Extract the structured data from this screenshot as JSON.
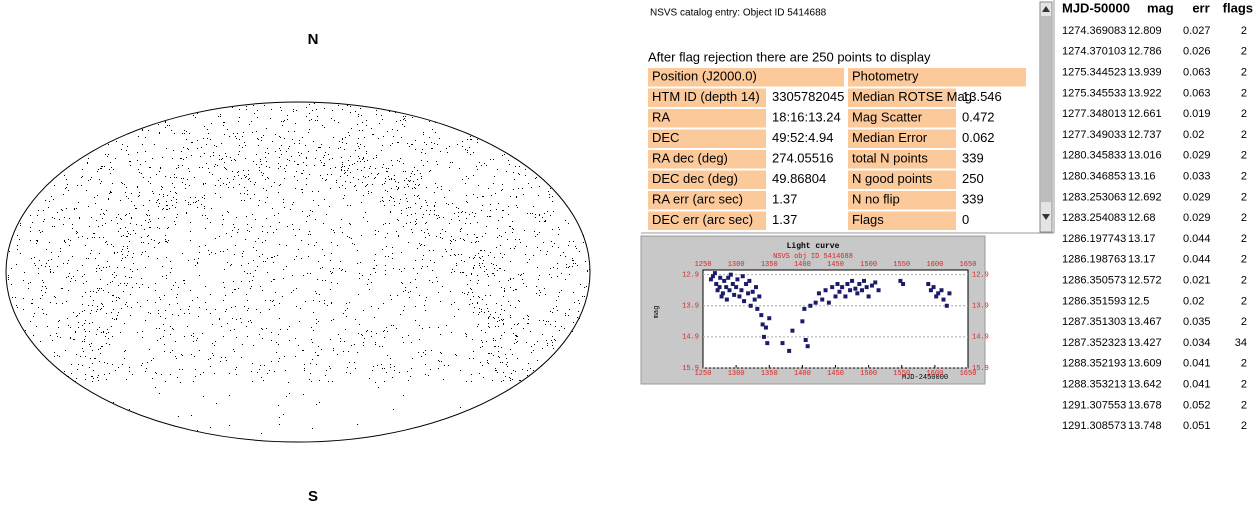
{
  "sky_map": {
    "north": "N",
    "south": "S"
  },
  "catalog": {
    "title": "NSVS catalog entry: Object ID 5414688",
    "note": "After flag rejection there are 250 points to display",
    "headers": [
      "Position (J2000.0)",
      "Photometry"
    ],
    "rows": [
      [
        "HTM ID (depth 14)",
        "3305782045",
        "Median ROTSE Mag",
        "13.546"
      ],
      [
        "RA",
        "18:16:13.24",
        "Mag Scatter",
        "0.472"
      ],
      [
        "DEC",
        "49:52:4.94",
        "Median Error",
        "0.062"
      ],
      [
        "RA dec (deg)",
        "274.05516",
        "total N points",
        "339"
      ],
      [
        "DEC dec (deg)",
        "49.86804",
        "N good points",
        "250"
      ],
      [
        "RA err (arc sec)",
        "1.37",
        "N no flip",
        "339"
      ],
      [
        "DEC err (arc sec)",
        "1.37",
        "Flags",
        "0"
      ]
    ]
  },
  "light_curve": {
    "type": "scatter",
    "title": "Light curve",
    "subtitle": "NSVS obj ID 5414688",
    "xlabel": "MJD-2450000",
    "ylabel": "mag",
    "color": "#1b1b6b",
    "xlim": [
      1250,
      1650
    ],
    "ylim": [
      12.75,
      15.9
    ],
    "xticks": [
      1250,
      1300,
      1350,
      1400,
      1450,
      1500,
      1550,
      1600,
      1650
    ],
    "yticks": [
      12.9,
      13.9,
      14.9,
      15.9
    ],
    "x": [
      1262,
      1265,
      1268,
      1270,
      1272,
      1275,
      1276,
      1278,
      1280,
      1282,
      1285,
      1286,
      1288,
      1290,
      1292,
      1295,
      1297,
      1300,
      1302,
      1305,
      1308,
      1310,
      1312,
      1315,
      1318,
      1320,
      1322,
      1325,
      1328,
      1330,
      1332,
      1335,
      1338,
      1340,
      1342,
      1345,
      1347,
      1350,
      1370,
      1380,
      1385,
      1400,
      1403,
      1405,
      1408,
      1412,
      1420,
      1425,
      1430,
      1435,
      1440,
      1445,
      1450,
      1453,
      1456,
      1460,
      1465,
      1468,
      1472,
      1475,
      1480,
      1483,
      1486,
      1490,
      1493,
      1497,
      1500,
      1505,
      1510,
      1515,
      1548,
      1552,
      1590,
      1594,
      1598,
      1602,
      1605,
      1610,
      1613,
      1618,
      1622
    ],
    "y": [
      13.05,
      12.95,
      12.85,
      13.2,
      13.4,
      13.3,
      13.0,
      13.6,
      13.5,
      13.1,
      13.3,
      13.7,
      13.0,
      13.4,
      12.9,
      13.2,
      13.55,
      13.3,
      13.05,
      13.6,
      13.4,
      12.95,
      13.75,
      13.2,
      13.5,
      13.1,
      13.9,
      13.45,
      13.7,
      13.3,
      14.0,
      13.6,
      14.2,
      14.5,
      14.9,
      14.6,
      15.1,
      14.3,
      15.1,
      15.35,
      14.7,
      14.4,
      14.0,
      15.0,
      15.2,
      13.9,
      13.8,
      13.5,
      13.7,
      13.4,
      13.8,
      13.3,
      13.6,
      13.2,
      13.45,
      13.3,
      13.6,
      13.2,
      13.4,
      13.1,
      13.35,
      13.5,
      13.2,
      13.4,
      13.1,
      13.3,
      13.6,
      13.25,
      13.15,
      13.4,
      13.1,
      13.2,
      13.2,
      13.4,
      13.3,
      13.6,
      13.5,
      13.4,
      13.7,
      13.9,
      13.5
    ]
  },
  "measurements": {
    "columns": [
      "MJD-50000",
      "mag",
      "err",
      "flags"
    ],
    "rows": [
      [
        "1274.369083",
        "12.809",
        "0.027",
        "2"
      ],
      [
        "1274.370103",
        "12.786",
        "0.026",
        "2"
      ],
      [
        "1275.344523",
        "13.939",
        "0.063",
        "2"
      ],
      [
        "1275.345533",
        "13.922",
        "0.063",
        "2"
      ],
      [
        "1277.348013",
        "12.661",
        "0.019",
        "2"
      ],
      [
        "1277.349033",
        "12.737",
        "0.02",
        "2"
      ],
      [
        "1280.345833",
        "13.016",
        "0.029",
        "2"
      ],
      [
        "1280.346853",
        "13.16",
        "0.033",
        "2"
      ],
      [
        "1283.253063",
        "12.692",
        "0.029",
        "2"
      ],
      [
        "1283.254083",
        "12.68",
        "0.029",
        "2"
      ],
      [
        "1286.197743",
        "13.17",
        "0.044",
        "2"
      ],
      [
        "1286.198763",
        "13.17",
        "0.044",
        "2"
      ],
      [
        "1286.350573",
        "12.572",
        "0.021",
        "2"
      ],
      [
        "1286.351593",
        "12.5",
        "0.02",
        "2"
      ],
      [
        "1287.351303",
        "13.467",
        "0.035",
        "2"
      ],
      [
        "1287.352323",
        "13.427",
        "0.034",
        "34"
      ],
      [
        "1288.352193",
        "13.609",
        "0.041",
        "2"
      ],
      [
        "1288.353213",
        "13.642",
        "0.041",
        "2"
      ],
      [
        "1291.307553",
        "13.678",
        "0.052",
        "2"
      ],
      [
        "1291.308573",
        "13.748",
        "0.051",
        "2"
      ]
    ]
  }
}
